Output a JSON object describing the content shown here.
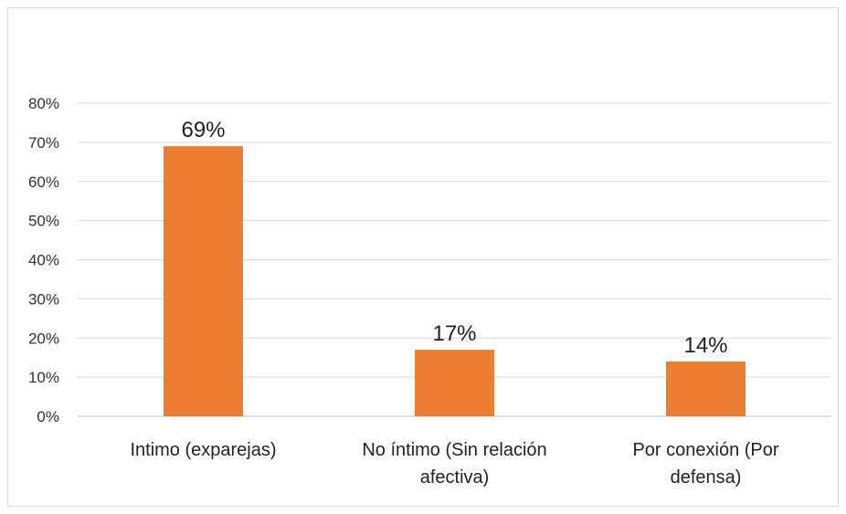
{
  "chart_data": {
    "type": "bar",
    "categories": [
      [
        "Intimo (exparejas)"
      ],
      [
        "No íntimo (Sin relación",
        "afectiva)"
      ],
      [
        "Por conexión (Por",
        "defensa)"
      ]
    ],
    "values": [
      69,
      17,
      14
    ],
    "data_labels": [
      "69%",
      "17%",
      "14%"
    ],
    "ylim": [
      0,
      80
    ],
    "yticks": [
      0,
      10,
      20,
      30,
      40,
      50,
      60,
      70,
      80
    ],
    "ytick_labels": [
      "0%",
      "10%",
      "20%",
      "30%",
      "40%",
      "50%",
      "60%",
      "70%",
      "80%"
    ],
    "title": "",
    "xlabel": "",
    "ylabel": "",
    "grid": true,
    "legend": "none",
    "bar_color": "#ED7D31"
  }
}
